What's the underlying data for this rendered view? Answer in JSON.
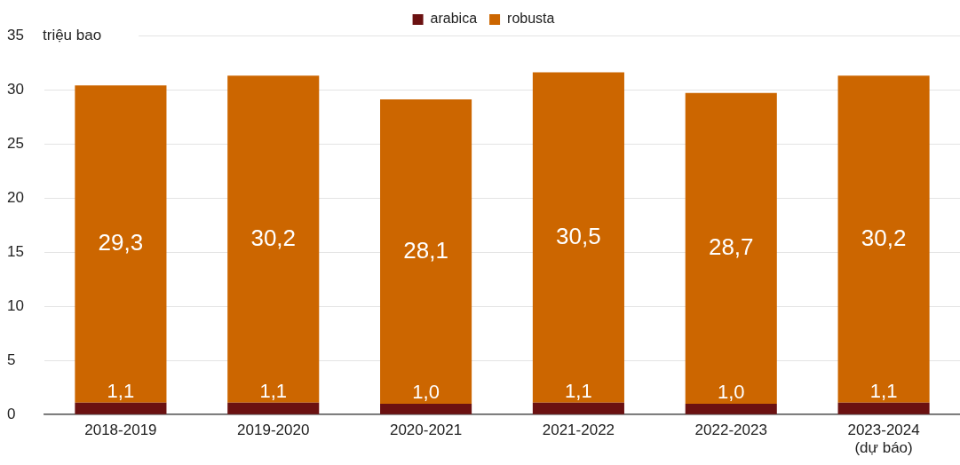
{
  "chart_data": {
    "type": "bar",
    "stacked": true,
    "categories": [
      "2018-2019",
      "2019-2020",
      "2020-2021",
      "2021-2022",
      "2022-2023",
      "2023-2024\n(dự báo)"
    ],
    "series": [
      {
        "name": "arabica",
        "color": "#6b1111",
        "values": [
          1.1,
          1.1,
          1.0,
          1.1,
          1.0,
          1.1
        ],
        "value_labels": [
          "1,1",
          "1,1",
          "1,0",
          "1,1",
          "1,0",
          "1,1"
        ]
      },
      {
        "name": "robusta",
        "color": "#cc6600",
        "values": [
          29.3,
          30.2,
          28.1,
          30.5,
          28.7,
          30.2
        ],
        "value_labels": [
          "29,3",
          "30,2",
          "28,1",
          "30,5",
          "28,7",
          "30,2"
        ]
      }
    ],
    "ylim": [
      0,
      35
    ],
    "yticks": [
      0,
      5,
      10,
      15,
      20,
      25,
      30,
      35
    ],
    "ylabel": "triệu bao",
    "grid": "y",
    "legend": "top"
  }
}
